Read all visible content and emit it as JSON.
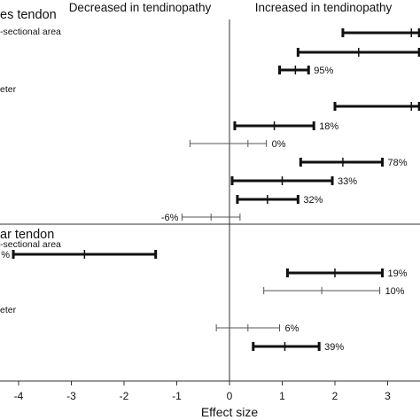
{
  "chart_data": {
    "type": "forest",
    "header_left": "Decreased in tendinopathy",
    "header_right": "Increased in tendinopathy",
    "xlabel": "Effect size",
    "xlim": [
      -4.3,
      3.6
    ],
    "xticks": [
      -4,
      -3,
      -2,
      -1,
      0,
      1,
      2,
      3
    ],
    "xtick_labels": [
      "-4",
      "-3",
      "-2",
      "-1",
      "0",
      "1",
      "2",
      "3"
    ],
    "groups": [
      {
        "title": "es tendon",
        "subheadings": [
          "-sectional area",
          "eter"
        ]
      },
      {
        "title": "ar tendon",
        "subheadings": [
          "-sectional area",
          "eter"
        ]
      }
    ],
    "estimates": [
      {
        "row": 1,
        "estimate": 3.45,
        "lower": 2.15,
        "upper": 3.6,
        "weight": "heavy",
        "label": ""
      },
      {
        "row": 2,
        "estimate": 2.45,
        "lower": 1.3,
        "upper": 3.6,
        "weight": "heavy",
        "label": ""
      },
      {
        "row": 3,
        "estimate": 1.25,
        "lower": 0.95,
        "upper": 1.5,
        "weight": "heavy",
        "label": "95%"
      },
      {
        "row": 4,
        "estimate": 3.45,
        "lower": 2.0,
        "upper": 3.6,
        "weight": "heavy",
        "label": ""
      },
      {
        "row": 5,
        "estimate": 0.85,
        "lower": 0.1,
        "upper": 1.6,
        "weight": "heavy",
        "label": "18%"
      },
      {
        "row": 6,
        "estimate": 0.35,
        "lower": -0.75,
        "upper": 0.7,
        "weight": "light",
        "label": "0%"
      },
      {
        "row": 7,
        "estimate": 2.15,
        "lower": 1.35,
        "upper": 2.9,
        "weight": "heavy",
        "label": "78%"
      },
      {
        "row": 8,
        "estimate": 1.0,
        "lower": 0.05,
        "upper": 1.95,
        "weight": "heavy",
        "label": "33%"
      },
      {
        "row": 9,
        "estimate": 0.72,
        "lower": 0.15,
        "upper": 1.3,
        "weight": "heavy",
        "label": "32%"
      },
      {
        "row": 10,
        "estimate": -0.35,
        "lower": -0.9,
        "upper": 0.2,
        "weight": "light",
        "label": "-6%",
        "label_side": "left"
      },
      {
        "row": 11,
        "estimate": -2.75,
        "lower": -4.1,
        "upper": -1.4,
        "weight": "heavy",
        "label": "%",
        "label_side": "left"
      },
      {
        "row": 12,
        "estimate": 2.0,
        "lower": 1.1,
        "upper": 2.9,
        "weight": "heavy",
        "label": "19%"
      },
      {
        "row": 13,
        "estimate": 1.75,
        "lower": 0.65,
        "upper": 2.85,
        "weight": "light",
        "label": "10%"
      },
      {
        "row": 14,
        "estimate": 0.35,
        "lower": -0.25,
        "upper": 0.95,
        "weight": "light",
        "label": "6%"
      },
      {
        "row": 15,
        "estimate": 1.05,
        "lower": 0.45,
        "upper": 1.7,
        "weight": "heavy",
        "label": "39%"
      }
    ]
  }
}
